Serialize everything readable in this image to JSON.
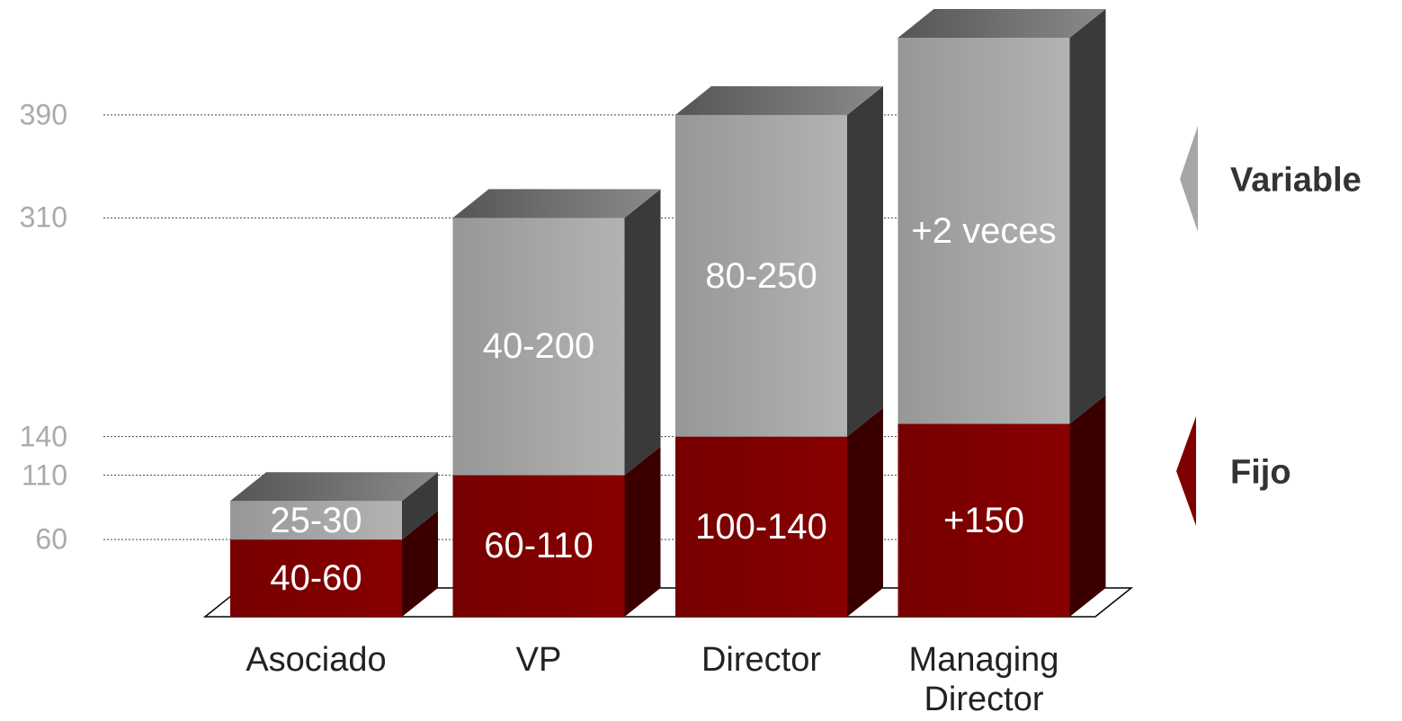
{
  "chart_data": {
    "type": "bar3d_stacked",
    "categories": [
      "Asociado",
      "VP",
      "Director",
      "Managing Director"
    ],
    "series": [
      {
        "name": "Fijo",
        "color": "#7f0000",
        "values": [
          60,
          110,
          140,
          150
        ],
        "value_labels": [
          "40-60",
          "60-110",
          "100-140",
          "+150"
        ]
      },
      {
        "name": "Variable",
        "color": "#a6a6a6",
        "values": [
          30,
          200,
          250,
          300
        ],
        "value_labels": [
          "25-30",
          "40-200",
          "80-250",
          "+2 veces"
        ]
      }
    ],
    "ylim": [
      0,
      450
    ],
    "yticks": [
      60,
      110,
      140,
      310,
      390
    ],
    "grid": true
  }
}
